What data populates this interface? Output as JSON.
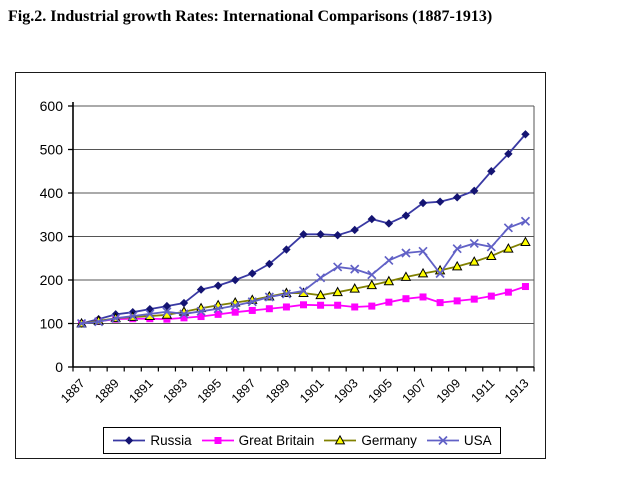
{
  "figure_title": "Fig.2. Industrial growth Rates: International Comparisons (1887-1913)",
  "chart_data": {
    "type": "line",
    "title": "Fig.2. Industrial growth Rates: International Comparisons (1887-1913)",
    "x": [
      1887,
      1888,
      1889,
      1890,
      1891,
      1892,
      1893,
      1894,
      1895,
      1896,
      1897,
      1898,
      1899,
      1900,
      1901,
      1902,
      1903,
      1904,
      1905,
      1906,
      1907,
      1908,
      1909,
      1910,
      1911,
      1912,
      1913
    ],
    "x_tick_labels": [
      "1887",
      "1889",
      "1891",
      "1893",
      "1895",
      "1897",
      "1899",
      "1901",
      "1903",
      "1905",
      "1907",
      "1909",
      "1911",
      "1913"
    ],
    "x_tick_step": 2,
    "ylim": [
      0,
      600
    ],
    "y_ticks": [
      0,
      100,
      200,
      300,
      400,
      500,
      600
    ],
    "grid": "horizontal",
    "legend_position": "bottom",
    "series": [
      {
        "name": "Russia",
        "marker": "diamond",
        "line_color": "#3939A3",
        "marker_color": "#141472",
        "values": [
          100,
          110,
          121,
          126,
          133,
          140,
          147,
          178,
          187,
          200,
          215,
          237,
          270,
          305,
          305,
          303,
          315,
          340,
          330,
          348,
          377,
          380,
          390,
          405,
          450,
          490,
          535
        ]
      },
      {
        "name": "Great Britain",
        "marker": "square",
        "line_color": "#FF00FF",
        "marker_color": "#FF00FF",
        "values": [
          100,
          105,
          110,
          111,
          111,
          110,
          113,
          116,
          121,
          126,
          130,
          134,
          138,
          143,
          142,
          142,
          138,
          140,
          149,
          157,
          161,
          148,
          152,
          156,
          163,
          172,
          185
        ]
      },
      {
        "name": "Germany",
        "marker": "triangle",
        "line_color": "#808000",
        "marker_color": "#FFFF00",
        "marker_outline": "#000000",
        "values": [
          100,
          106,
          112,
          115,
          117,
          120,
          127,
          135,
          142,
          148,
          154,
          162,
          170,
          170,
          165,
          172,
          180,
          188,
          197,
          207,
          215,
          222,
          231,
          242,
          255,
          272,
          287
        ]
      },
      {
        "name": "USA",
        "marker": "x",
        "line_color": "#6161C6",
        "marker_color": "#6161C6",
        "values": [
          100,
          104,
          112,
          117,
          122,
          127,
          122,
          128,
          134,
          141,
          150,
          161,
          168,
          175,
          205,
          230,
          225,
          212,
          245,
          262,
          266,
          215,
          272,
          284,
          276,
          320,
          335
        ]
      }
    ],
    "axis_color": "#000000",
    "gridline_color": "#555555"
  }
}
